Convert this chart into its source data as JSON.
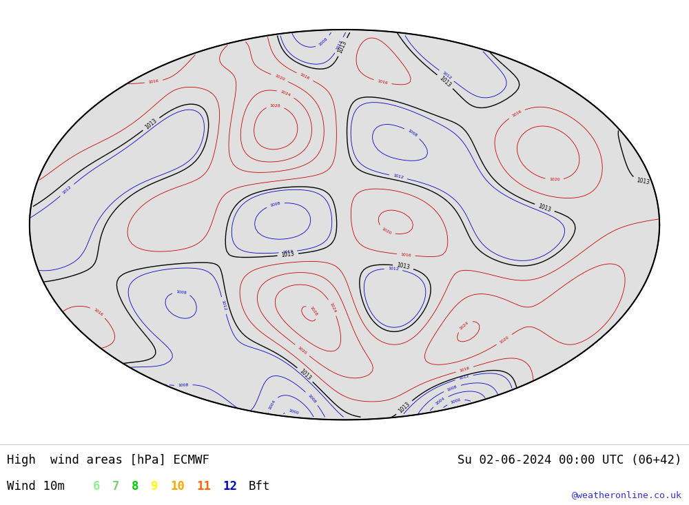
{
  "title_left": "High  wind areas [hPa] ECMWF",
  "title_right": "Su 02-06-2024 00:00 UTC (06+42)",
  "subtitle_left": "Wind 10m",
  "credit": "@weatheronline.co.uk",
  "legend_values_colored": [
    "6",
    "7",
    "8",
    "9",
    "10",
    "11",
    "12"
  ],
  "legend_colors": [
    "#90ee90",
    "#7ccd7c",
    "#00cc00",
    "#ffff00",
    "#ffa500",
    "#ff6600",
    "#0000cd"
  ],
  "background_color": "#ffffff",
  "isobar_low_color": "#0000cc",
  "isobar_high_color": "#cc0000",
  "coast_color": "#000000",
  "wind_fill_colors": [
    "#c8f5c8",
    "#90ee90",
    "#7ccd7c",
    "#00bb00",
    "#ffff00",
    "#ffa500",
    "#ff4500",
    "#0000cd"
  ],
  "wind_levels": [
    6.0,
    7.0,
    8.0,
    9.0,
    10.0,
    11.0,
    12.0,
    13.0,
    20.0
  ],
  "figsize": [
    10.0,
    7.33
  ],
  "dpi": 100,
  "map_bg": "#f0f0f0",
  "ocean_color": "#e8e8e8",
  "land_color": "#f5f5f5"
}
